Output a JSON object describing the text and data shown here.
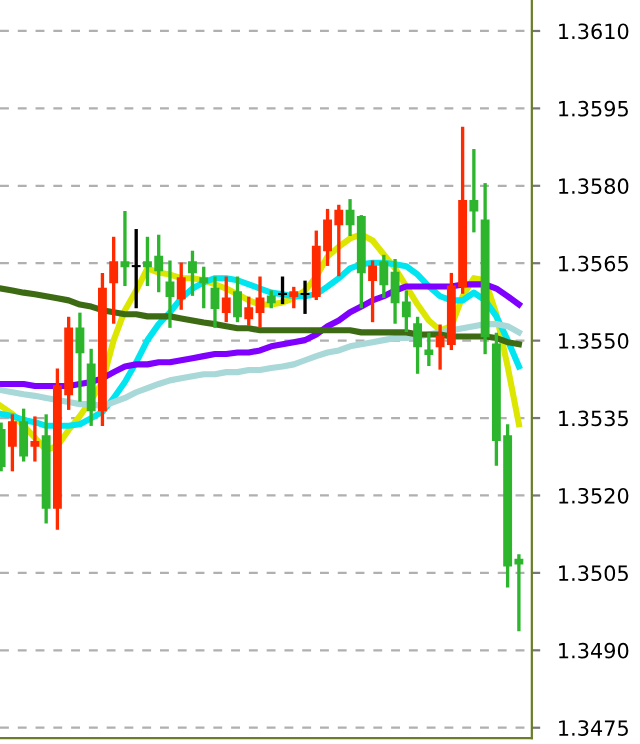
{
  "chart_data": {
    "type": "candlestick",
    "categories": [
      null,
      null,
      null,
      null,
      null,
      null,
      null,
      null,
      null,
      null,
      null,
      null,
      null,
      null,
      null,
      null,
      null,
      null,
      null,
      null,
      null,
      null,
      null,
      null,
      null,
      null,
      null,
      null,
      null,
      null,
      null,
      null,
      null,
      null,
      null,
      null,
      null,
      null,
      null,
      null,
      null,
      null,
      null,
      null,
      null,
      null,
      null
    ],
    "ohlc": [
      [
        1.35327,
        1.35338,
        1.3525,
        1.35257
      ],
      [
        1.35296,
        1.35354,
        1.3525,
        1.35342
      ],
      [
        1.35342,
        1.35365,
        1.35269,
        1.35277
      ],
      [
        1.35296,
        1.3535,
        1.35269,
        1.35304
      ],
      [
        1.35315,
        1.35354,
        1.35149,
        1.35176
      ],
      [
        1.35176,
        1.35443,
        1.35137,
        1.35412
      ],
      [
        1.35396,
        1.35543,
        1.35369,
        1.35524
      ],
      [
        1.35524,
        1.35551,
        1.35385,
        1.35477
      ],
      [
        1.35454,
        1.35481,
        1.35338,
        1.35365
      ],
      [
        1.35365,
        1.35628,
        1.35338,
        1.35601
      ],
      [
        1.35613,
        1.35698,
        1.35536,
        1.35652
      ],
      [
        1.35652,
        1.35748,
        1.35609,
        1.35644
      ],
      [
        1.35644,
        1.35713,
        1.35566,
        1.35644
      ],
      [
        1.35652,
        1.35698,
        1.35609,
        1.35644
      ],
      [
        1.35663,
        1.35702,
        1.35597,
        1.35636
      ],
      [
        1.35613,
        1.35652,
        1.35528,
        1.35586
      ],
      [
        1.35582,
        1.35648,
        1.35563,
        1.35621
      ],
      [
        1.35652,
        1.35671,
        1.3559,
        1.35632
      ],
      [
        1.35621,
        1.3564,
        1.35566,
        1.35613
      ],
      [
        1.35601,
        1.35621,
        1.35528,
        1.35563
      ],
      [
        1.35555,
        1.35621,
        1.35539,
        1.35582
      ],
      [
        1.35594,
        1.35621,
        1.35539,
        1.35547
      ],
      [
        1.35543,
        1.35582,
        1.35532,
        1.35563
      ],
      [
        1.35555,
        1.35621,
        1.35528,
        1.35582
      ],
      [
        1.35586,
        1.35594,
        1.35566,
        1.35574
      ],
      [
        1.3559,
        1.35621,
        1.35574,
        1.3559
      ],
      [
        1.35586,
        1.35601,
        1.35566,
        1.35594
      ],
      [
        1.3559,
        1.35613,
        1.35555,
        1.3559
      ],
      [
        1.35586,
        1.3571,
        1.35582,
        1.35682
      ],
      [
        1.35675,
        1.35752,
        1.35648,
        1.35733
      ],
      [
        1.35725,
        1.3576,
        1.35628,
        1.35752
      ],
      [
        1.35752,
        1.35771,
        1.35706,
        1.35725
      ],
      [
        1.3574,
        1.3574,
        1.35566,
        1.35632
      ],
      [
        1.35617,
        1.35652,
        1.35539,
        1.35644
      ],
      [
        1.35652,
        1.35663,
        1.35586,
        1.35609
      ],
      [
        1.35632,
        1.35655,
        1.35536,
        1.35574
      ],
      [
        1.35574,
        1.35594,
        1.3552,
        1.35547
      ],
      [
        1.35532,
        1.35543,
        1.35439,
        1.35489
      ],
      [
        1.35481,
        1.35512,
        1.35454,
        1.35474
      ],
      [
        1.35489,
        1.35528,
        1.35447,
        1.35508
      ],
      [
        1.35493,
        1.35628,
        1.35485,
        1.35605
      ],
      [
        1.35605,
        1.35911,
        1.35594,
        1.35771
      ],
      [
        1.35771,
        1.35868,
        1.35713,
        1.35752
      ],
      [
        1.35733,
        1.35802,
        1.35477,
        1.35508
      ],
      [
        1.35493,
        1.35512,
        1.35261,
        1.35307
      ],
      [
        1.35315,
        1.35335,
        1.35025,
        1.35064
      ],
      [
        1.35076,
        1.35083,
        1.3494,
        1.35068
      ]
    ],
    "colors": [
      "#2db52d",
      "#ff2a00",
      "#2db52d",
      "#ff2a00",
      "#2db52d",
      "#ff2a00",
      "#ff2a00",
      "#2db52d",
      "#2db52d",
      "#ff2a00",
      "#ff2a00",
      "#2db52d",
      "#000000",
      "#2db52d",
      "#2db52d",
      "#2db52d",
      "#ff2a00",
      "#2db52d",
      "#2db52d",
      "#2db52d",
      "#ff2a00",
      "#2db52d",
      "#ff2a00",
      "#ff2a00",
      "#2db52d",
      "#000000",
      "#ff2a00",
      "#000000",
      "#ff2a00",
      "#ff2a00",
      "#ff2a00",
      "#2db52d",
      "#2db52d",
      "#ff2a00",
      "#2db52d",
      "#2db52d",
      "#2db52d",
      "#2db52d",
      "#2db52d",
      "#ff2a00",
      "#ff2a00",
      "#ff2a00",
      "#2db52d",
      "#2db52d",
      "#2db52d",
      "#2db52d",
      "#2db52d"
    ],
    "series": [
      {
        "type": "line",
        "color": "#dce600",
        "values": [
          1.35373,
          1.35358,
          1.35335,
          1.35312,
          1.35288,
          1.35296,
          1.35327,
          1.35354,
          1.35385,
          1.3542,
          1.35501,
          1.35559,
          1.35597,
          1.3564,
          1.35632,
          1.35628,
          1.35621,
          1.35621,
          1.35617,
          1.35609,
          1.35601,
          1.3559,
          1.35578,
          1.3557,
          1.3557,
          1.35574,
          1.35582,
          1.35597,
          1.35624,
          1.35663,
          1.35682,
          1.35698,
          1.35706,
          1.35694,
          1.35667,
          1.3564,
          1.35605,
          1.3557,
          1.35539,
          1.3552,
          1.35528,
          1.35586,
          1.35621,
          1.35617,
          1.35551,
          1.3545,
          1.35338
        ]
      },
      {
        "type": "line",
        "color": "#00e5f0",
        "values": [
          1.35358,
          1.35354,
          1.35346,
          1.35342,
          1.35335,
          1.35335,
          1.35335,
          1.35338,
          1.3535,
          1.35362,
          1.35389,
          1.3542,
          1.35458,
          1.35501,
          1.35532,
          1.35555,
          1.35582,
          1.35601,
          1.35613,
          1.35621,
          1.35621,
          1.35617,
          1.35609,
          1.35601,
          1.35593,
          1.3559,
          1.35586,
          1.35586,
          1.3559,
          1.35605,
          1.35621,
          1.3564,
          1.35648,
          1.35651,
          1.35651,
          1.35648,
          1.35644,
          1.35628,
          1.35605,
          1.35586,
          1.35578,
          1.35578,
          1.35593,
          1.35578,
          1.35547,
          1.35501,
          1.3545
        ]
      },
      {
        "type": "line",
        "color": "#7f00ff",
        "values": [
          1.35416,
          1.35416,
          1.35416,
          1.35412,
          1.35412,
          1.35412,
          1.35412,
          1.35416,
          1.3542,
          1.35427,
          1.35439,
          1.3545,
          1.35454,
          1.35454,
          1.35458,
          1.35458,
          1.35462,
          1.35466,
          1.3547,
          1.35474,
          1.35474,
          1.35477,
          1.35477,
          1.35481,
          1.35489,
          1.35493,
          1.35497,
          1.35501,
          1.35512,
          1.35528,
          1.35539,
          1.35555,
          1.35566,
          1.35578,
          1.35586,
          1.35597,
          1.35605,
          1.35605,
          1.35605,
          1.35605,
          1.35605,
          1.35609,
          1.35609,
          1.35609,
          1.35601,
          1.35586,
          1.3557
        ]
      },
      {
        "type": "line",
        "color": "#a8d8d8",
        "values": [
          1.35404,
          1.354,
          1.35396,
          1.35393,
          1.35389,
          1.35385,
          1.35381,
          1.35377,
          1.35377,
          1.35373,
          1.35381,
          1.35389,
          1.354,
          1.35408,
          1.35416,
          1.35423,
          1.35427,
          1.35431,
          1.35435,
          1.35435,
          1.35439,
          1.35439,
          1.35443,
          1.35443,
          1.35447,
          1.3545,
          1.35454,
          1.35462,
          1.3547,
          1.35477,
          1.35481,
          1.35489,
          1.35493,
          1.35497,
          1.35501,
          1.35505,
          1.35505,
          1.35508,
          1.35512,
          1.35516,
          1.3552,
          1.35524,
          1.35528,
          1.35532,
          1.35532,
          1.35528,
          1.35516
        ]
      },
      {
        "type": "line",
        "color": "#3d6b13",
        "values": [
          1.35601,
          1.35597,
          1.35593,
          1.3559,
          1.35586,
          1.35582,
          1.35578,
          1.3557,
          1.35566,
          1.35559,
          1.35555,
          1.35551,
          1.35551,
          1.35547,
          1.35547,
          1.35547,
          1.35543,
          1.35539,
          1.35535,
          1.35532,
          1.35528,
          1.35524,
          1.35524,
          1.3552,
          1.3552,
          1.3552,
          1.3552,
          1.3552,
          1.3552,
          1.3552,
          1.3552,
          1.3552,
          1.35516,
          1.35516,
          1.35516,
          1.35516,
          1.35516,
          1.35512,
          1.35512,
          1.35512,
          1.35508,
          1.35508,
          1.35508,
          1.35508,
          1.35505,
          1.35497,
          1.35493
        ]
      }
    ],
    "ylim": [
      1.3473,
      1.3616
    ],
    "yticks": [
      {
        "value": 1.361,
        "label": "1.3610"
      },
      {
        "value": 1.3595,
        "label": "1.3595"
      },
      {
        "value": 1.358,
        "label": "1.3580"
      },
      {
        "value": 1.3565,
        "label": "1.3565"
      },
      {
        "value": 1.355,
        "label": "1.3550"
      },
      {
        "value": 1.3535,
        "label": "1.3535"
      },
      {
        "value": 1.352,
        "label": "1.3520"
      },
      {
        "value": 1.3505,
        "label": "1.3505"
      },
      {
        "value": 1.349,
        "label": "1.3490"
      },
      {
        "value": 1.3475,
        "label": "1.3475"
      }
    ],
    "grid": "y"
  }
}
